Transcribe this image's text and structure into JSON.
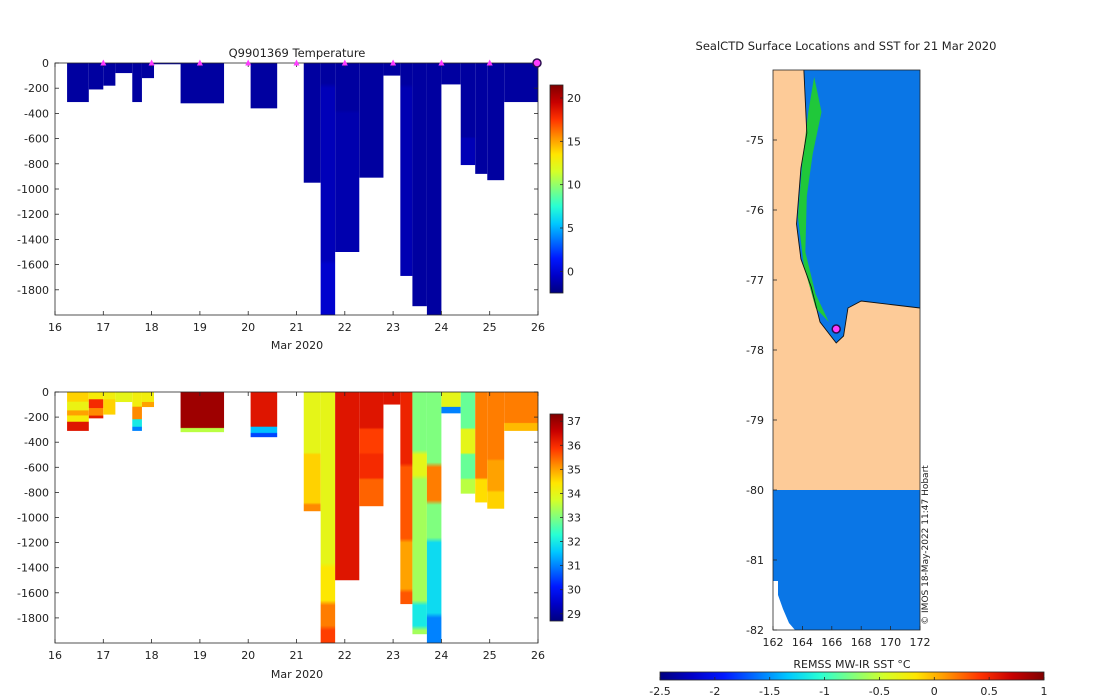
{
  "colors": {
    "background": "#ffffff",
    "axis": "#262626",
    "land": "#fdcb98",
    "ocean": "#0a76e6",
    "coast_green": "#20c83a",
    "marker": "#ff3cff",
    "dark_marker": "#2a0f4d"
  },
  "colormaps": {
    "temperature": [
      "#00007f",
      "#0000c8",
      "#0018ff",
      "#0070ff",
      "#00c8ff",
      "#28ffd4",
      "#7fff7f",
      "#d4ff28",
      "#ffe600",
      "#ff9000",
      "#ff3400",
      "#c80000",
      "#800000"
    ],
    "salinity": [
      "#00007f",
      "#0000c8",
      "#0018ff",
      "#0070ff",
      "#00c8ff",
      "#28ffd4",
      "#7fff7f",
      "#d4ff28",
      "#ffe600",
      "#ff9000",
      "#ff3400",
      "#c80000",
      "#800000"
    ],
    "sst": [
      "#00007f",
      "#0000c8",
      "#0018ff",
      "#0070ff",
      "#00c8ff",
      "#28ffd4",
      "#7fff7f",
      "#d4ff28",
      "#ffe600",
      "#ff9000",
      "#ff3400",
      "#c80000",
      "#800000"
    ]
  },
  "chart_data": [
    {
      "type": "heatmap",
      "id": "temperature",
      "title": "Q9901369  Temperature",
      "xlabel": "Mar 2020",
      "ylabel": "",
      "xlim": [
        16,
        26
      ],
      "ylim": [
        -2000,
        0
      ],
      "xticks": [
        16,
        17,
        18,
        19,
        20,
        21,
        22,
        23,
        24,
        25,
        26
      ],
      "yticks": [
        0,
        -200,
        -400,
        -600,
        -800,
        -1000,
        -1200,
        -1400,
        -1600,
        -1800
      ],
      "clim": [
        -2.5,
        21.5
      ],
      "colorbar_ticks": [
        0,
        5,
        10,
        15,
        20
      ],
      "profile_markers_x": [
        17,
        18,
        19,
        20,
        21,
        22,
        23,
        24,
        25
      ],
      "last_marker_x": 26,
      "profiles": [
        {
          "x0": 16.25,
          "x1": 16.7,
          "bottom": -310,
          "values": [
            [
              0,
              -1.6
            ]
          ]
        },
        {
          "x0": 16.7,
          "x1": 17.0,
          "bottom": -210,
          "values": [
            [
              0,
              -1.6
            ]
          ]
        },
        {
          "x0": 17.0,
          "x1": 17.25,
          "bottom": -180,
          "values": [
            [
              0,
              -1.6
            ]
          ]
        },
        {
          "x0": 17.25,
          "x1": 17.6,
          "bottom": -80,
          "values": [
            [
              0,
              -1.6
            ]
          ]
        },
        {
          "x0": 17.6,
          "x1": 17.8,
          "bottom": -310,
          "values": [
            [
              0,
              -1.6
            ]
          ]
        },
        {
          "x0": 17.8,
          "x1": 18.05,
          "bottom": -120,
          "values": [
            [
              0,
              -1.6
            ]
          ]
        },
        {
          "x0": 18.05,
          "x1": 18.6,
          "bottom": -10,
          "values": [
            [
              0,
              -1.6
            ]
          ]
        },
        {
          "x0": 18.6,
          "x1": 19.5,
          "bottom": -320,
          "values": [
            [
              0,
              -1.6
            ]
          ]
        },
        {
          "x0": 20.05,
          "x1": 20.6,
          "bottom": -360,
          "values": [
            [
              0,
              -1.6
            ]
          ]
        },
        {
          "x0": 21.15,
          "x1": 21.5,
          "bottom": -950,
          "values": [
            [
              0,
              -1.6
            ]
          ]
        },
        {
          "x0": 21.5,
          "x1": 21.8,
          "bottom": -2000,
          "values": [
            [
              0,
              -1.6
            ],
            [
              -200,
              -0.9
            ],
            [
              -1600,
              -0.3
            ]
          ]
        },
        {
          "x0": 21.8,
          "x1": 22.3,
          "bottom": -1500,
          "values": [
            [
              0,
              -1.6
            ],
            [
              -400,
              -1.2
            ]
          ]
        },
        {
          "x0": 22.3,
          "x1": 22.8,
          "bottom": -910,
          "values": [
            [
              0,
              -1.6
            ]
          ]
        },
        {
          "x0": 22.8,
          "x1": 23.15,
          "bottom": -100,
          "values": [
            [
              0,
              -1.6
            ]
          ]
        },
        {
          "x0": 23.15,
          "x1": 23.4,
          "bottom": -1690,
          "values": [
            [
              0,
              -1.6
            ],
            [
              -200,
              -1.1
            ]
          ]
        },
        {
          "x0": 23.4,
          "x1": 23.7,
          "bottom": -1930,
          "values": [
            [
              0,
              -1.6
            ]
          ]
        },
        {
          "x0": 23.7,
          "x1": 24.0,
          "bottom": -2000,
          "values": [
            [
              0,
              -1.6
            ]
          ]
        },
        {
          "x0": 24.0,
          "x1": 24.4,
          "bottom": -170,
          "values": [
            [
              0,
              -1.6
            ]
          ]
        },
        {
          "x0": 24.4,
          "x1": 24.7,
          "bottom": -810,
          "values": [
            [
              0,
              -1.6
            ],
            [
              -600,
              -1.0
            ]
          ]
        },
        {
          "x0": 24.7,
          "x1": 24.95,
          "bottom": -880,
          "values": [
            [
              0,
              -1.6
            ]
          ]
        },
        {
          "x0": 24.95,
          "x1": 25.3,
          "bottom": -930,
          "values": [
            [
              0,
              -1.6
            ]
          ]
        },
        {
          "x0": 25.3,
          "x1": 26.0,
          "bottom": -310,
          "values": [
            [
              0,
              -1.6
            ]
          ]
        }
      ]
    },
    {
      "type": "heatmap",
      "id": "salinity",
      "title": "",
      "xlabel": "Mar 2020",
      "ylabel": "",
      "xlim": [
        16,
        26
      ],
      "ylim": [
        -2000,
        0
      ],
      "xticks": [
        16,
        17,
        18,
        19,
        20,
        21,
        22,
        23,
        24,
        25,
        26
      ],
      "yticks": [
        0,
        -200,
        -400,
        -600,
        -800,
        -1000,
        -1200,
        -1400,
        -1600,
        -1800
      ],
      "clim": [
        28.7,
        37.3
      ],
      "colorbar_ticks": [
        29,
        30,
        31,
        32,
        33,
        34,
        35,
        36,
        37
      ],
      "profiles": [
        {
          "x0": 16.25,
          "x1": 16.7,
          "bottom": -310,
          "values": [
            [
              0,
              34.6
            ],
            [
              -80,
              34.1
            ],
            [
              -150,
              35.0
            ],
            [
              -190,
              34.3
            ],
            [
              -240,
              36.3
            ]
          ]
        },
        {
          "x0": 16.7,
          "x1": 17.0,
          "bottom": -210,
          "values": [
            [
              0,
              34.3
            ],
            [
              -60,
              36.0
            ],
            [
              -130,
              35.2
            ],
            [
              -190,
              36.2
            ]
          ]
        },
        {
          "x0": 17.0,
          "x1": 17.25,
          "bottom": -180,
          "values": [
            [
              0,
              34.2
            ],
            [
              -60,
              34.6
            ]
          ]
        },
        {
          "x0": 17.25,
          "x1": 17.6,
          "bottom": -80,
          "values": [
            [
              0,
              34.0
            ]
          ]
        },
        {
          "x0": 17.6,
          "x1": 17.8,
          "bottom": -310,
          "values": [
            [
              0,
              34.2
            ],
            [
              -120,
              35.2
            ],
            [
              -220,
              32.0
            ],
            [
              -280,
              31.0
            ]
          ]
        },
        {
          "x0": 17.8,
          "x1": 18.05,
          "bottom": -120,
          "values": [
            [
              0,
              34.2
            ],
            [
              -80,
              35.0
            ]
          ]
        },
        {
          "x0": 18.6,
          "x1": 19.5,
          "bottom": -320,
          "values": [
            [
              0,
              37.0
            ],
            [
              -290,
              33.5
            ]
          ]
        },
        {
          "x0": 20.05,
          "x1": 20.6,
          "bottom": -360,
          "values": [
            [
              0,
              36.3
            ],
            [
              -280,
              31.5
            ],
            [
              -330,
              30.5
            ]
          ]
        },
        {
          "x0": 21.15,
          "x1": 21.5,
          "bottom": -950,
          "values": [
            [
              0,
              34.0
            ],
            [
              -500,
              34.6
            ],
            [
              -900,
              35.2
            ]
          ]
        },
        {
          "x0": 21.5,
          "x1": 21.8,
          "bottom": -2000,
          "values": [
            [
              0,
              34.0
            ],
            [
              -1400,
              34.4
            ],
            [
              -1700,
              35.3
            ],
            [
              -1900,
              35.8
            ]
          ]
        },
        {
          "x0": 21.8,
          "x1": 22.3,
          "bottom": -1500,
          "values": [
            [
              0,
              36.3
            ]
          ]
        },
        {
          "x0": 22.3,
          "x1": 22.8,
          "bottom": -910,
          "values": [
            [
              0,
              36.3
            ],
            [
              -300,
              35.8
            ],
            [
              -500,
              36.0
            ],
            [
              -700,
              35.5
            ]
          ]
        },
        {
          "x0": 22.8,
          "x1": 23.15,
          "bottom": -100,
          "values": [
            [
              0,
              36.3
            ]
          ]
        },
        {
          "x0": 23.15,
          "x1": 23.4,
          "bottom": -1690,
          "values": [
            [
              0,
              36.1
            ],
            [
              -600,
              35.6
            ],
            [
              -1200,
              35.0
            ],
            [
              -1600,
              35.6
            ]
          ]
        },
        {
          "x0": 23.4,
          "x1": 23.7,
          "bottom": -1930,
          "values": [
            [
              0,
              33.0
            ],
            [
              -500,
              34.0
            ],
            [
              -700,
              33.3
            ],
            [
              -1700,
              32.0
            ],
            [
              -1900,
              33.3
            ]
          ]
        },
        {
          "x0": 23.7,
          "x1": 24.0,
          "bottom": -2000,
          "values": [
            [
              0,
              33.0
            ],
            [
              -600,
              35.3
            ],
            [
              -900,
              33.0
            ],
            [
              -1200,
              31.8
            ],
            [
              -1800,
              31.0
            ]
          ]
        },
        {
          "x0": 24.0,
          "x1": 24.4,
          "bottom": -170,
          "values": [
            [
              0,
              34.0
            ],
            [
              -120,
              31.0
            ]
          ]
        },
        {
          "x0": 24.4,
          "x1": 24.7,
          "bottom": -810,
          "values": [
            [
              0,
              32.8
            ],
            [
              -300,
              34.0
            ],
            [
              -500,
              32.8
            ],
            [
              -700,
              33.5
            ]
          ]
        },
        {
          "x0": 24.7,
          "x1": 24.95,
          "bottom": -880,
          "values": [
            [
              0,
              35.3
            ],
            [
              -700,
              34.5
            ]
          ]
        },
        {
          "x0": 24.95,
          "x1": 25.3,
          "bottom": -930,
          "values": [
            [
              0,
              35.3
            ],
            [
              -550,
              35.0
            ],
            [
              -800,
              34.6
            ]
          ]
        },
        {
          "x0": 25.3,
          "x1": 26.0,
          "bottom": -310,
          "values": [
            [
              0,
              35.3
            ],
            [
              -250,
              34.8
            ]
          ]
        }
      ]
    },
    {
      "type": "heatmap",
      "id": "sst-map",
      "title": "SealCTD Surface Locations and SST for 21 Mar 2020",
      "xlabel": "REMSS MW-IR SST °C",
      "xlim": [
        162,
        172
      ],
      "ylim": [
        -82,
        -74
      ],
      "xticks": [
        162,
        164,
        166,
        168,
        170,
        172
      ],
      "yticks": [
        -75,
        -76,
        -77,
        -78,
        -79,
        -80,
        -81,
        -82
      ],
      "clim": [
        -2.5,
        1
      ],
      "colorbar_ticks": [
        -2.5,
        -2,
        -1.5,
        -1,
        -0.5,
        0,
        0.5,
        1
      ],
      "marker_lon": 166.3,
      "marker_lat": -77.7,
      "watermark": "© IMOS 18-May-2022 11:47 Hobart"
    }
  ]
}
